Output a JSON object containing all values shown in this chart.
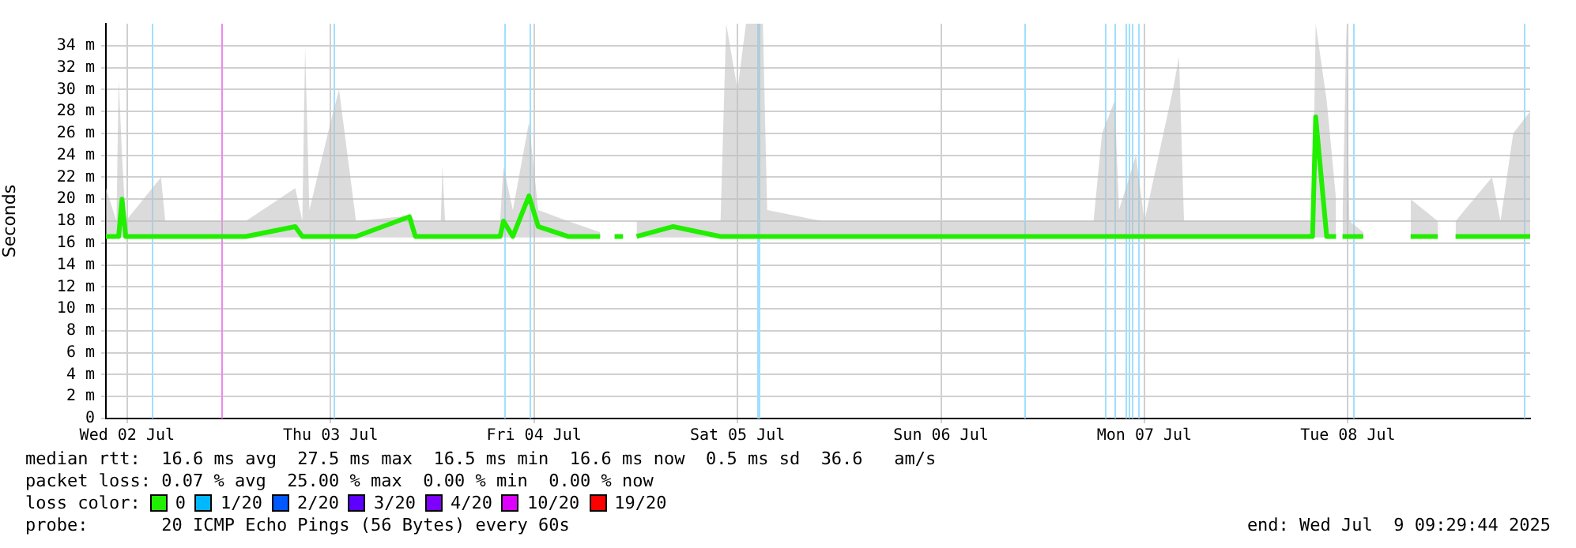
{
  "chart_data": {
    "type": "line",
    "ylabel": "Seconds",
    "legend_title": "loss color:",
    "legend": "bottom",
    "grid": true,
    "xlim": [
      "2025-07-02T09:30",
      "2025-07-09T09:30"
    ],
    "xticks": [
      {
        "value": "2025-07-02T12:00",
        "label": "Wed 02 Jul"
      },
      {
        "value": "2025-07-03T12:00",
        "label": "Thu 03 Jul"
      },
      {
        "value": "2025-07-04T12:00",
        "label": "Fri 04 Jul"
      },
      {
        "value": "2025-07-05T12:00",
        "label": "Sat 05 Jul"
      },
      {
        "value": "2025-07-06T12:00",
        "label": "Sun 06 Jul"
      },
      {
        "value": "2025-07-07T12:00",
        "label": "Mon 07 Jul"
      },
      {
        "value": "2025-07-08T12:00",
        "label": "Tue 08 Jul"
      }
    ],
    "ylim": [
      0,
      36
    ],
    "yticks": [
      0,
      {
        "value": 2,
        "label": "2 m"
      },
      {
        "value": 4,
        "label": "4 m"
      },
      {
        "value": 6,
        "label": "6 m"
      },
      {
        "value": 8,
        "label": "8 m"
      },
      {
        "value": 10,
        "label": "10 m"
      },
      {
        "value": 12,
        "label": "12 m"
      },
      {
        "value": 14,
        "label": "14 m"
      },
      {
        "value": 16,
        "label": "16 m"
      },
      {
        "value": 18,
        "label": "18 m"
      },
      {
        "value": 20,
        "label": "20 m"
      },
      {
        "value": 22,
        "label": "22 m"
      },
      {
        "value": 24,
        "label": "24 m"
      },
      {
        "value": 26,
        "label": "26 m"
      },
      {
        "value": 28,
        "label": "28 m"
      },
      {
        "value": 30,
        "label": "30 m"
      },
      {
        "value": 32,
        "label": "32 m"
      },
      {
        "value": 34,
        "label": "34 m"
      }
    ],
    "series": [
      {
        "name": "0",
        "color": "#22ee00",
        "x": [
          "2025-07-02T09:30",
          "2025-07-02T10:45",
          "2025-07-02T11:00",
          "2025-07-02T11:24",
          "2025-07-02T11:50",
          "2025-07-02T16:00",
          "2025-07-02T16:30",
          "2025-07-02T20:00",
          "2025-07-03T02:00",
          "2025-07-03T07:50",
          "2025-07-03T08:40",
          "2025-07-03T09:00",
          "2025-07-03T09:30",
          "2025-07-03T12:00",
          "2025-07-03T13:00",
          "2025-07-03T14:00",
          "2025-07-03T15:00",
          "2025-07-03T21:18",
          "2025-07-03T22:00",
          "2025-07-04T01:00",
          "2025-07-04T01:12",
          "2025-07-04T01:30",
          "2025-07-04T08:00",
          "2025-07-04T08:24",
          "2025-07-04T09:30",
          "2025-07-04T11:24",
          "2025-07-04T12:30",
          "2025-07-04T16:00",
          "2025-07-04T19:48",
          "2025-07-04T20:30",
          "2025-07-04T21:30",
          "2025-07-04T22:30",
          "2025-07-04T23:00",
          "2025-07-05T00:06",
          "2025-07-05T04:25",
          "2025-07-05T10:00",
          "2025-07-05T10:40",
          "2025-07-05T12:00",
          "2025-07-05T13:00",
          "2025-07-05T15:00",
          "2025-07-05T15:30",
          "2025-07-05T22:00",
          "2025-07-06T14:00",
          "2025-07-07T06:00",
          "2025-07-07T07:00",
          "2025-07-07T08:30",
          "2025-07-07T09:00",
          "2025-07-07T11:00",
          "2025-07-07T12:00",
          "2025-07-07T15:22",
          "2025-07-07T16:05",
          "2025-07-07T16:40",
          "2025-07-08T07:50",
          "2025-07-08T08:12",
          "2025-07-08T09:30",
          "2025-07-08T10:36",
          "2025-07-08T11:00",
          "2025-07-08T11:22",
          "2025-07-08T11:50",
          "2025-07-08T12:10",
          "2025-07-08T13:49",
          "2025-07-08T16:00",
          "2025-07-08T19:24",
          "2025-07-08T22:36",
          "2025-07-08T23:00",
          "2025-07-09T00:42",
          "2025-07-09T05:00",
          "2025-07-09T06:00",
          "2025-07-09T07:30",
          "2025-07-09T09:30"
        ],
        "values": [
          16.6,
          16.6,
          16.6,
          20,
          16.6,
          16.6,
          16.6,
          16.6,
          16.6,
          17.5,
          16.6,
          16.6,
          16.6,
          16.6,
          16.6,
          16.6,
          16.6,
          18.4,
          16.6,
          16.6,
          16.6,
          16.6,
          16.6,
          18,
          16.6,
          20.3,
          17.5,
          16.6,
          16.6,
          null,
          16.6,
          16.6,
          null,
          16.6,
          17.5,
          16.6,
          16.6,
          16.6,
          16.6,
          16.6,
          16.6,
          16.6,
          16.6,
          16.6,
          16.6,
          16.6,
          16.6,
          16.6,
          16.6,
          16.6,
          16.6,
          16.6,
          16.6,
          27.5,
          16.6,
          16.6,
          null,
          16.6,
          16.6,
          16.6,
          16.6,
          null,
          16.6,
          16.6,
          null,
          16.6,
          16.6,
          16.6,
          16.6,
          16.6
        ],
        "lower": [
          16.5,
          16.5,
          16.5,
          16.5,
          16.5,
          16.5,
          16.5,
          16.5,
          16.5,
          16.5,
          16.5,
          16.5,
          16.5,
          16.5,
          16.5,
          16.5,
          16.5,
          16.5,
          16.5,
          16.5,
          16.5,
          16.5,
          16.5,
          16.5,
          16.5,
          16.5,
          16.5,
          16.5,
          16.5,
          null,
          null,
          null,
          null,
          16.5,
          16.5,
          16.5,
          16.5,
          16.5,
          16.5,
          16.5,
          16.5,
          16.5,
          16.5,
          16.5,
          16.5,
          16.5,
          16.5,
          16.5,
          16.5,
          16.5,
          16.5,
          16.5,
          16.5,
          16.5,
          16.5,
          16.5,
          null,
          16.5,
          16.5,
          16.5,
          16.5,
          null,
          16.5,
          16.5,
          null,
          16.5,
          16.5,
          16.5,
          16.5,
          16.5
        ],
        "upper": [
          21,
          18,
          31,
          24,
          18,
          22,
          18,
          18,
          18,
          21,
          18,
          34,
          19,
          27,
          30,
          24,
          18,
          18.5,
          18,
          18,
          23,
          18,
          18,
          23,
          19,
          27,
          19,
          18,
          17,
          null,
          null,
          null,
          null,
          18,
          18,
          18,
          36,
          30,
          36,
          36,
          19,
          18,
          18,
          18,
          26,
          29,
          19,
          24,
          18,
          30,
          33,
          18,
          18,
          36,
          29,
          20,
          null,
          18,
          36,
          18,
          17,
          null,
          20,
          18,
          null,
          18,
          22,
          18,
          26,
          28
        ]
      },
      {
        "name": "1/20",
        "color": "#00b8ff"
      },
      {
        "name": "2/20",
        "color": "#0059ff"
      },
      {
        "name": "3/20",
        "color": "#5e00ff"
      },
      {
        "name": "4/20",
        "color": "#7e00ff"
      },
      {
        "name": "10/20",
        "color": "#dd00ff"
      },
      {
        "name": "19/20",
        "color": "#ff0000"
      }
    ],
    "ref_lines": [
      {
        "axis": "x",
        "value": "2025-07-02T14:56",
        "color": "#a0e0ff"
      },
      {
        "axis": "x",
        "value": "2025-07-02T23:10",
        "color": "#ee88ee"
      },
      {
        "axis": "x",
        "value": "2025-07-03T12:20",
        "color": "#a0e0ff"
      },
      {
        "axis": "x",
        "value": "2025-07-04T08:24",
        "color": "#a0e0ff"
      },
      {
        "axis": "x",
        "value": "2025-07-04T11:24",
        "color": "#a0e0ff"
      },
      {
        "axis": "x",
        "value": "2025-07-05T14:20",
        "color": "#a0e0ff"
      },
      {
        "axis": "x",
        "value": "2025-07-05T14:35",
        "color": "#a0e0ff"
      },
      {
        "axis": "x",
        "value": "2025-07-06T21:54",
        "color": "#a0e0ff"
      },
      {
        "axis": "x",
        "value": "2025-07-07T07:26",
        "color": "#a0e0ff"
      },
      {
        "axis": "x",
        "value": "2025-07-07T08:24",
        "color": "#a0e0ff"
      },
      {
        "axis": "x",
        "value": "2025-07-07T09:42",
        "color": "#a0e0ff"
      },
      {
        "axis": "x",
        "value": "2025-07-07T10:05",
        "color": "#a0e0ff"
      },
      {
        "axis": "x",
        "value": "2025-07-07T10:27",
        "color": "#a0e0ff"
      },
      {
        "axis": "x",
        "value": "2025-07-07T11:12",
        "color": "#a0e0ff"
      },
      {
        "axis": "x",
        "value": "2025-07-08T12:42",
        "color": "#a0e0ff"
      },
      {
        "axis": "x",
        "value": "2025-07-09T08:48",
        "color": "#a0e0ff"
      }
    ],
    "annotations": [
      "median rtt:  16.6 ms avg  27.5 ms max  16.5 ms min  16.6 ms now  0.5 ms sd  36.6   am/s",
      "packet loss: 0.07 % avg  25.00 % max  0.00 % min  0.00 % now",
      "probe:       20 ICMP Echo Pings (56 Bytes) every 60s",
      "end: Wed Jul  9 09:29:44 2025"
    ]
  }
}
